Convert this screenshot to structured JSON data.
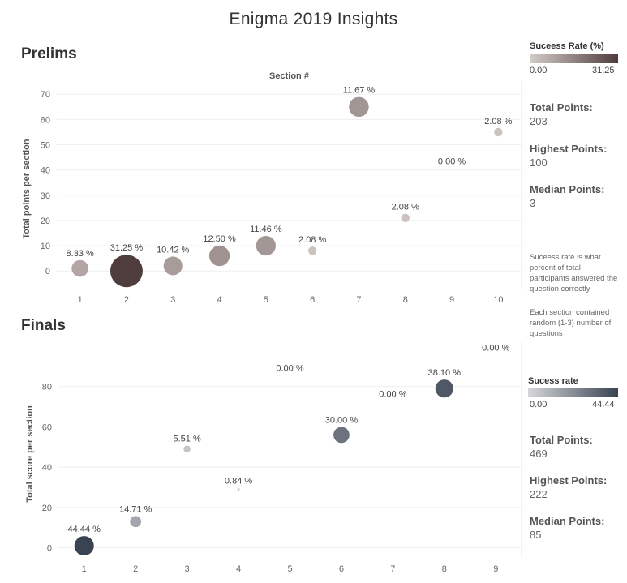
{
  "title": "Enigma 2019 Insights",
  "prelims": {
    "heading": "Prelims",
    "legend_title": "Suceess Rate (%)",
    "legend_min": "0.00",
    "legend_max": "31.25",
    "stats": [
      {
        "label": "Total Points:",
        "value": "203"
      },
      {
        "label": "Highest Points:",
        "value": "100"
      },
      {
        "label": "Median Points:",
        "value": "3"
      }
    ],
    "note1": "Suceess rate is what percent of total participants answered the question correctly",
    "note2": "Each section contained random (1-3) number of questions",
    "colors": {
      "low": "#d4ccc9",
      "high": "#4f3c3c"
    }
  },
  "finals": {
    "heading": "Finals",
    "legend_title": "Sucess rate",
    "legend_min": "0.00",
    "legend_max": "44.44",
    "stats": [
      {
        "label": "Total Points:",
        "value": "469"
      },
      {
        "label": "Highest Points:",
        "value": "222"
      },
      {
        "label": "Median Points:",
        "value": "85"
      }
    ],
    "colors": {
      "low": "#d6d7d9",
      "high": "#3a4352"
    }
  },
  "chart_data": [
    {
      "type": "scatter",
      "title": "Prelims",
      "xlabel": "Section #",
      "ylabel": "Total points per section",
      "xlim": [
        0.5,
        10.5
      ],
      "ylim": [
        -7,
        72
      ],
      "x_ticks": [
        1,
        2,
        3,
        4,
        5,
        6,
        7,
        8,
        9,
        10
      ],
      "y_ticks": [
        0,
        10,
        20,
        30,
        40,
        50,
        60,
        70
      ],
      "points": [
        {
          "x": 1,
          "y": 1,
          "rate": 8.33,
          "label": "8.33 %"
        },
        {
          "x": 2,
          "y": 0,
          "rate": 31.25,
          "label": "31.25 %"
        },
        {
          "x": 3,
          "y": 2,
          "rate": 10.42,
          "label": "10.42 %"
        },
        {
          "x": 4,
          "y": 6,
          "rate": 12.5,
          "label": "12.50 %"
        },
        {
          "x": 5,
          "y": 10,
          "rate": 11.46,
          "label": "11.46 %"
        },
        {
          "x": 6,
          "y": 8,
          "rate": 2.08,
          "label": "2.08 %"
        },
        {
          "x": 7,
          "y": 65,
          "rate": 11.67,
          "label": "11.67 %"
        },
        {
          "x": 8,
          "y": 21,
          "rate": 2.08,
          "label": "2.08 %"
        },
        {
          "x": 9,
          "y": 40,
          "rate": 0.0,
          "label": "0.00 %"
        },
        {
          "x": 10,
          "y": 55,
          "rate": 2.08,
          "label": "2.08 %"
        }
      ]
    },
    {
      "type": "scatter",
      "title": "Finals",
      "xlabel": "",
      "ylabel": "Total score per section",
      "xlim": [
        0.5,
        9.5
      ],
      "ylim": [
        -5,
        98
      ],
      "x_ticks": [
        1,
        2,
        3,
        4,
        5,
        6,
        7,
        8,
        9
      ],
      "y_ticks": [
        0,
        20,
        40,
        60,
        80
      ],
      "points": [
        {
          "x": 1,
          "y": 1,
          "rate": 44.44,
          "label": "44.44 %"
        },
        {
          "x": 2,
          "y": 13,
          "rate": 14.71,
          "label": "14.71 %"
        },
        {
          "x": 3,
          "y": 49,
          "rate": 5.51,
          "label": "5.51 %"
        },
        {
          "x": 4,
          "y": 29,
          "rate": 0.84,
          "label": "0.84 %"
        },
        {
          "x": 5,
          "y": 85,
          "rate": 0.0,
          "label": "0.00 %"
        },
        {
          "x": 6,
          "y": 56,
          "rate": 30.0,
          "label": "30.00 %"
        },
        {
          "x": 7,
          "y": 72,
          "rate": 0.0,
          "label": "0.00 %"
        },
        {
          "x": 8,
          "y": 79,
          "rate": 38.1,
          "label": "38.10 %"
        },
        {
          "x": 9,
          "y": 95,
          "rate": 0.0,
          "label": "0.00 %"
        }
      ]
    }
  ]
}
